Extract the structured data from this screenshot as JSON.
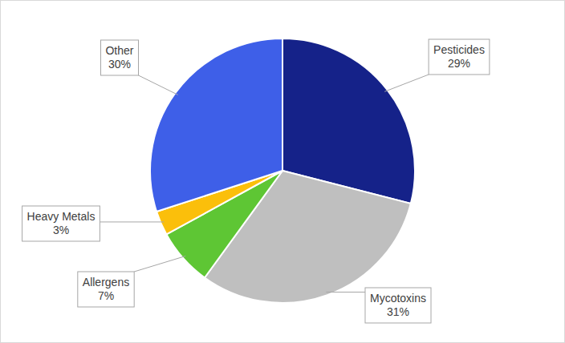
{
  "chart_data": {
    "type": "pie",
    "categories": [
      "Pesticides",
      "Mycotoxins",
      "Allergens",
      "Heavy Metals",
      "Other"
    ],
    "values": [
      29,
      31,
      7,
      3,
      30
    ],
    "value_labels": [
      "29%",
      "31%",
      "7%",
      "3%",
      "30%"
    ],
    "colors": [
      "#152289",
      "#bfbfbf",
      "#5ec634",
      "#fbbf0b",
      "#3e5fe8"
    ],
    "data_labels": true
  }
}
